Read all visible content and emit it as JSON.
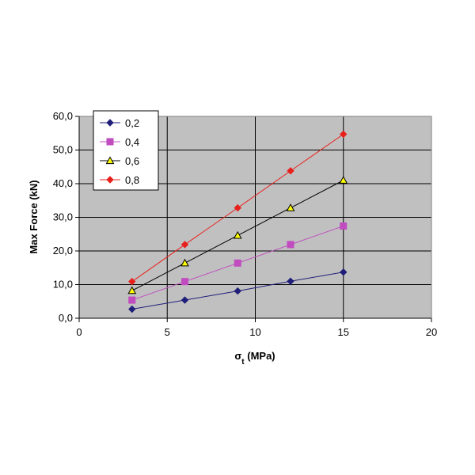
{
  "chart_data": {
    "type": "line",
    "title": "",
    "xlabel": "σt (MPa)",
    "xlabel_main": "σ",
    "xlabel_sub": "t",
    "xlabel_rest": " (MPa)",
    "ylabel": "Max Force (kN)",
    "xlim": [
      0,
      20
    ],
    "ylim": [
      0,
      60
    ],
    "x_ticks": [
      "0",
      "5",
      "10",
      "15",
      "20"
    ],
    "y_ticks": [
      "0,0",
      "10,0",
      "20,0",
      "30,0",
      "40,0",
      "50,0",
      "60,0"
    ],
    "grid": true,
    "legend_position": "top-left",
    "plot_background": "#c0c0c0",
    "series": [
      {
        "name": "0,2",
        "color": "#1f1f7a",
        "marker": "diamond",
        "x": [
          3,
          6,
          9,
          12,
          15
        ],
        "y": [
          2.7,
          5.4,
          8.1,
          11.0,
          13.7
        ]
      },
      {
        "name": "0,4",
        "color": "#c04cc0",
        "marker": "square",
        "x": [
          3,
          6,
          9,
          12,
          15
        ],
        "y": [
          5.4,
          10.9,
          16.4,
          21.9,
          27.4
        ]
      },
      {
        "name": "0,6",
        "color": "#000000",
        "marker": "triangle",
        "marker_fill": "#ffff00",
        "x": [
          3,
          6,
          9,
          12,
          15
        ],
        "y": [
          8.2,
          16.4,
          24.6,
          32.8,
          41.0
        ]
      },
      {
        "name": "0,8",
        "color": "#e8201c",
        "marker": "diamond",
        "x": [
          3,
          6,
          9,
          12,
          15
        ],
        "y": [
          10.9,
          21.9,
          32.8,
          43.8,
          54.7
        ]
      }
    ]
  }
}
